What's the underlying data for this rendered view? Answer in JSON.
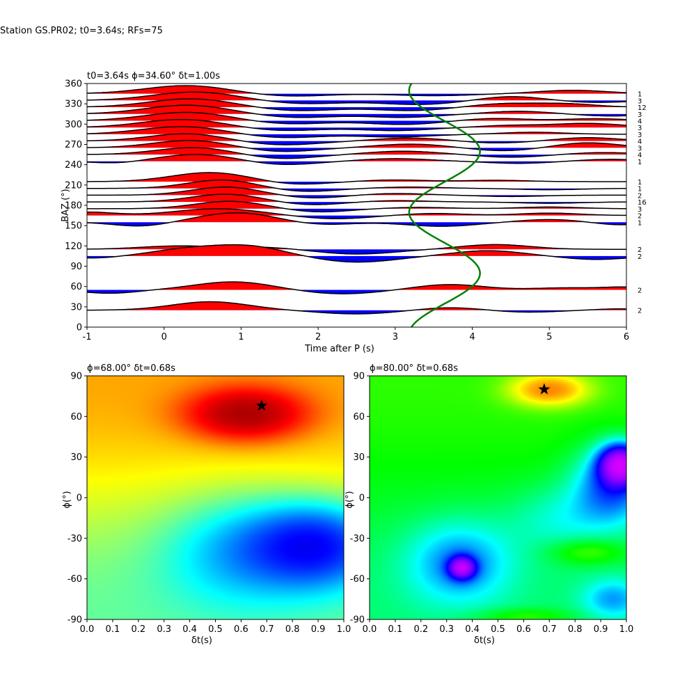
{
  "figure": {
    "suptitle": "Station GS.PR02; t0=3.64s; RFs=75"
  },
  "chart_data": [
    {
      "type": "line",
      "panel": "receiver-function-gather",
      "title": "t0=3.64s ϕ=34.60° δt=1.00s",
      "xlabel": "Time after P (s)",
      "ylabel": "BAZ (°)",
      "xlim": [
        -1,
        6
      ],
      "ylim": [
        0,
        360
      ],
      "xticks": [
        -1,
        0,
        1,
        2,
        3,
        4,
        5,
        6
      ],
      "yticks": [
        0,
        30,
        60,
        90,
        120,
        150,
        180,
        210,
        240,
        270,
        300,
        330,
        360
      ],
      "grid": false,
      "fill_positive_color": "#ff0000",
      "fill_negative_color": "#0000ff",
      "trace_color": "#000000",
      "curve_color": "#008000",
      "traces": [
        {
          "baz": 345,
          "count": "1",
          "peaks": [
            [
              0.3,
              1.2,
              0.55
            ],
            [
              1.6,
              -0.4,
              0.5
            ],
            [
              3.5,
              -0.3,
              0.5
            ],
            [
              5.3,
              0.5,
              0.45
            ]
          ]
        },
        {
          "baz": 335,
          "count": "3",
          "peaks": [
            [
              0.4,
              1.25,
              0.55
            ],
            [
              1.8,
              -0.5,
              0.5
            ],
            [
              3.3,
              -0.6,
              0.5
            ],
            [
              4.5,
              0.6,
              0.4
            ],
            [
              5.6,
              -0.3,
              0.4
            ]
          ]
        },
        {
          "baz": 325,
          "count": "12",
          "peaks": [
            [
              0.35,
              1.25,
              0.55
            ],
            [
              1.7,
              -0.55,
              0.5
            ],
            [
              3.2,
              -0.5,
              0.45
            ],
            [
              4.4,
              0.5,
              0.4
            ],
            [
              5.2,
              0.5,
              0.4
            ]
          ]
        },
        {
          "baz": 315,
          "count": "3",
          "peaks": [
            [
              0.3,
              1.3,
              0.55
            ],
            [
              1.7,
              -0.55,
              0.5
            ],
            [
              3.1,
              -0.5,
              0.45
            ],
            [
              4.6,
              0.4,
              0.4
            ],
            [
              5.8,
              -0.3,
              0.4
            ]
          ]
        },
        {
          "baz": 305,
          "count": "4",
          "peaks": [
            [
              0.3,
              1.25,
              0.55
            ],
            [
              1.6,
              -0.5,
              0.5
            ],
            [
              3.1,
              -0.55,
              0.45
            ],
            [
              4.3,
              0.35,
              0.4
            ],
            [
              5.6,
              0.3,
              0.4
            ]
          ]
        },
        {
          "baz": 295,
          "count": "3",
          "peaks": [
            [
              0.25,
              1.2,
              0.55
            ],
            [
              1.5,
              -0.5,
              0.5
            ],
            [
              3.0,
              -0.45,
              0.45
            ],
            [
              4.5,
              0.3,
              0.4
            ],
            [
              5.5,
              0.6,
              0.45
            ]
          ]
        },
        {
          "baz": 285,
          "count": "3",
          "peaks": [
            [
              0.25,
              1.15,
              0.55
            ],
            [
              1.5,
              -0.55,
              0.5
            ],
            [
              3.0,
              -0.4,
              0.45
            ],
            [
              4.8,
              0.3,
              0.4
            ]
          ]
        },
        {
          "baz": 275,
          "count": "4",
          "peaks": [
            [
              0.3,
              1.1,
              0.5
            ],
            [
              1.5,
              -0.6,
              0.5
            ],
            [
              3.2,
              0.45,
              0.45
            ],
            [
              4.3,
              -0.3,
              0.4
            ],
            [
              5.5,
              0.5,
              0.4
            ]
          ]
        },
        {
          "baz": 265,
          "count": "3",
          "peaks": [
            [
              0.35,
              1.1,
              0.5
            ],
            [
              1.5,
              -0.6,
              0.45
            ],
            [
              3.2,
              0.55,
              0.45
            ],
            [
              4.4,
              -0.45,
              0.4
            ],
            [
              5.5,
              0.75,
              0.4
            ]
          ]
        },
        {
          "baz": 255,
          "count": "4",
          "peaks": [
            [
              0.4,
              1.05,
              0.5
            ],
            [
              1.5,
              -0.65,
              0.45
            ],
            [
              3.1,
              0.5,
              0.45
            ],
            [
              4.5,
              -0.4,
              0.4
            ],
            [
              5.7,
              0.3,
              0.4
            ]
          ]
        },
        {
          "baz": 245,
          "count": "1",
          "peaks": [
            [
              -0.6,
              -0.3,
              0.3
            ],
            [
              0.45,
              1.05,
              0.5
            ],
            [
              1.5,
              -0.55,
              0.45
            ],
            [
              3.0,
              0.4,
              0.45
            ],
            [
              4.6,
              -0.3,
              0.4
            ],
            [
              5.8,
              0.3,
              0.4
            ]
          ]
        },
        {
          "baz": 215,
          "count": "1",
          "peaks": [
            [
              0.6,
              1.35,
              0.5
            ],
            [
              1.7,
              -0.45,
              0.4
            ],
            [
              3.0,
              0.25,
              0.4
            ],
            [
              4.3,
              0.2,
              0.4
            ]
          ]
        },
        {
          "baz": 205,
          "count": "1",
          "peaks": [
            [
              0.75,
              1.25,
              0.45
            ],
            [
              1.8,
              -0.5,
              0.4
            ],
            [
              3.2,
              0.2,
              0.4
            ],
            [
              5.0,
              -0.2,
              0.4
            ]
          ]
        },
        {
          "baz": 195,
          "count": "2",
          "peaks": [
            [
              0.8,
              1.2,
              0.45
            ],
            [
              1.9,
              -0.45,
              0.4
            ],
            [
              3.0,
              0.25,
              0.4
            ],
            [
              4.5,
              -0.2,
              0.4
            ]
          ]
        },
        {
          "baz": 185,
          "count": "16",
          "peaks": [
            [
              0.8,
              1.15,
              0.45
            ],
            [
              1.9,
              -0.45,
              0.4
            ],
            [
              3.0,
              0.2,
              0.4
            ],
            [
              5.0,
              -0.2,
              0.4
            ]
          ]
        },
        {
          "baz": 175,
          "count": "3",
          "peaks": [
            [
              0.85,
              1.1,
              0.45
            ],
            [
              2.0,
              -0.5,
              0.4
            ],
            [
              3.3,
              0.2,
              0.4
            ],
            [
              5.0,
              0.25,
              0.4
            ]
          ]
        },
        {
          "baz": 165,
          "count": "2",
          "peaks": [
            [
              -1.0,
              0.5,
              0.35
            ],
            [
              0.7,
              1.0,
              0.55
            ],
            [
              2.2,
              -0.5,
              0.45
            ],
            [
              3.5,
              0.3,
              0.4
            ],
            [
              5.0,
              0.35,
              0.4
            ]
          ]
        },
        {
          "baz": 155,
          "count": "1",
          "peaks": [
            [
              -0.3,
              -0.6,
              0.35
            ],
            [
              0.95,
              1.4,
              0.5
            ],
            [
              2.0,
              -0.4,
              0.4
            ],
            [
              3.6,
              -0.6,
              0.45
            ],
            [
              5.0,
              0.4,
              0.4
            ],
            [
              5.9,
              -0.4,
              0.3
            ]
          ]
        },
        {
          "baz": 115,
          "count": "2",
          "peaks": [
            [
              0.2,
              0.5,
              0.5
            ],
            [
              1.3,
              0.3,
              0.4
            ],
            [
              2.5,
              -0.7,
              0.5
            ],
            [
              4.3,
              0.7,
              0.45
            ]
          ]
        },
        {
          "baz": 105,
          "count": "2",
          "peaks": [
            [
              -0.9,
              -0.3,
              0.3
            ],
            [
              0.3,
              1.0,
              0.45
            ],
            [
              1.1,
              1.4,
              0.45
            ],
            [
              2.5,
              -0.9,
              0.5
            ],
            [
              4.2,
              0.8,
              0.45
            ],
            [
              5.6,
              -0.5,
              0.4
            ]
          ]
        },
        {
          "baz": 55,
          "count": "2",
          "peaks": [
            [
              -0.7,
              -0.5,
              0.35
            ],
            [
              0.9,
              1.2,
              0.5
            ],
            [
              2.3,
              -0.6,
              0.5
            ],
            [
              3.7,
              0.8,
              0.45
            ],
            [
              5.2,
              0.3,
              0.4
            ],
            [
              6.0,
              0.4,
              0.3
            ]
          ]
        },
        {
          "baz": 25,
          "count": "2",
          "peaks": [
            [
              0.6,
              1.25,
              0.5
            ],
            [
              2.5,
              -0.55,
              0.5
            ],
            [
              3.7,
              0.4,
              0.4
            ],
            [
              4.7,
              -0.3,
              0.4
            ],
            [
              5.9,
              0.2,
              0.3
            ]
          ]
        }
      ],
      "green_curve": {
        "t0": 3.64,
        "amplitude": 0.46,
        "period_deg": 180,
        "phase_deg": 34.6
      }
    },
    {
      "type": "heatmap",
      "panel": "grid-search-left",
      "title": "ϕ=68.00° δt=0.68s",
      "xlabel": "δt(s)",
      "ylabel": "ϕ(°)",
      "xlim": [
        0.0,
        1.0
      ],
      "ylim": [
        -90,
        90
      ],
      "xticks": [
        0.0,
        0.1,
        0.2,
        0.3,
        0.4,
        0.5,
        0.6,
        0.7,
        0.8,
        0.9,
        1.0
      ],
      "yticks": [
        -90,
        -60,
        -30,
        0,
        30,
        60,
        90
      ],
      "colormap": "jet-like",
      "best": {
        "dt": 0.68,
        "phi": 68.0
      },
      "features": [
        [
          0.62,
          62,
          2.2,
          0.22,
          18
        ],
        [
          0.9,
          -35,
          -1.8,
          0.25,
          30
        ],
        [
          0.6,
          -38,
          -0.9,
          0.3,
          40
        ]
      ]
    },
    {
      "type": "heatmap",
      "panel": "grid-search-right",
      "title": "ϕ=80.00° δt=0.68s",
      "xlabel": "δt(s)",
      "ylabel": "ϕ(°)",
      "xlim": [
        0.0,
        1.0
      ],
      "ylim": [
        -90,
        90
      ],
      "xticks": [
        0.0,
        0.1,
        0.2,
        0.3,
        0.4,
        0.5,
        0.6,
        0.7,
        0.8,
        0.9,
        1.0
      ],
      "yticks": [
        -90,
        -60,
        -30,
        0,
        30,
        60,
        90
      ],
      "colormap": "hsv-like",
      "best": {
        "dt": 0.68,
        "phi": 80.0
      },
      "features": [
        [
          0.7,
          80,
          1.6,
          0.15,
          12
        ],
        [
          0.36,
          -52,
          -2.2,
          0.05,
          8
        ],
        [
          0.35,
          -48,
          -1.0,
          0.2,
          30
        ],
        [
          0.98,
          25,
          -2.8,
          0.08,
          14
        ],
        [
          0.95,
          10,
          -1.4,
          0.15,
          28
        ],
        [
          0.85,
          -40,
          0.6,
          0.15,
          10
        ],
        [
          0.95,
          -75,
          -0.8,
          0.12,
          15
        ],
        [
          0.6,
          -88,
          0.5,
          0.2,
          6
        ],
        [
          0.75,
          -15,
          -0.5,
          0.2,
          25
        ]
      ]
    }
  ]
}
